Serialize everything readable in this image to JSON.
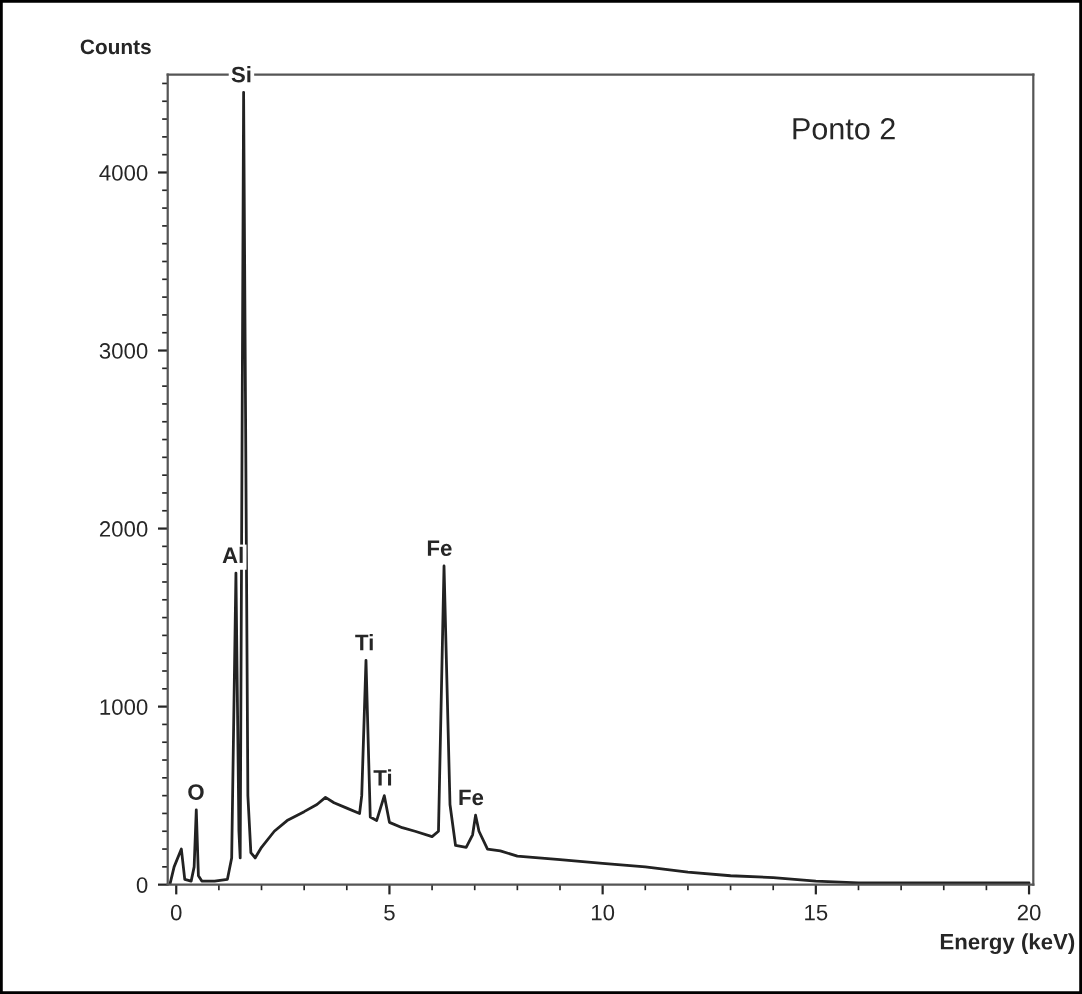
{
  "chart_data": {
    "type": "line",
    "xlabel": "Energy (keV)",
    "ylabel": "Counts",
    "xlim": [
      -0.2,
      20.1
    ],
    "ylim": [
      0,
      4550
    ],
    "xticks": [
      0,
      5,
      10,
      15,
      20
    ],
    "yticks": [
      0,
      1000,
      2000,
      3000,
      4000
    ],
    "grid": false,
    "legend": false,
    "marker": "none",
    "line_style": "solid",
    "series": [
      {
        "color": "#222222",
        "x": [
          -0.15,
          -0.05,
          0.0,
          0.05,
          0.12,
          0.2,
          0.35,
          0.42,
          0.47,
          0.52,
          0.6,
          0.9,
          1.2,
          1.3,
          1.4,
          1.47,
          1.5,
          1.58,
          1.68,
          1.75,
          1.85,
          2.0,
          2.3,
          2.6,
          3.0,
          3.3,
          3.5,
          3.7,
          4.0,
          4.3,
          4.35,
          4.45,
          4.55,
          4.7,
          4.88,
          5.0,
          5.3,
          5.6,
          6.0,
          6.15,
          6.28,
          6.42,
          6.55,
          6.8,
          6.95,
          7.02,
          7.1,
          7.3,
          7.6,
          8.0,
          9.0,
          10,
          11,
          12,
          13,
          14,
          15,
          16,
          17,
          18,
          19,
          20
        ],
        "values": [
          0,
          100,
          null,
          null,
          200,
          30,
          20,
          100,
          420,
          50,
          20,
          20,
          30,
          150,
          1750,
          300,
          150,
          4450,
          500,
          180,
          150,
          210,
          300,
          360,
          410,
          450,
          490,
          460,
          430,
          400,
          500,
          1260,
          380,
          360,
          500,
          350,
          320,
          300,
          270,
          300,
          1790,
          450,
          220,
          210,
          280,
          390,
          300,
          200,
          190,
          160,
          140,
          120,
          100,
          70,
          50,
          40,
          20,
          10,
          10,
          10,
          10,
          10
        ]
      }
    ],
    "annotations": [
      {
        "text": "O",
        "x": 0.47,
        "y": 420
      },
      {
        "text": "Al",
        "x": 1.4,
        "y": 1750
      },
      {
        "text": "Si",
        "x": 1.58,
        "y": 4450
      },
      {
        "text": "Ti",
        "x": 4.45,
        "y": 1260
      },
      {
        "text": "Ti",
        "x": 4.88,
        "y": 500
      },
      {
        "text": "Fe",
        "x": 6.28,
        "y": 1790
      },
      {
        "text": "Fe",
        "x": 7.02,
        "y": 390
      },
      "Ponto 2"
    ]
  }
}
